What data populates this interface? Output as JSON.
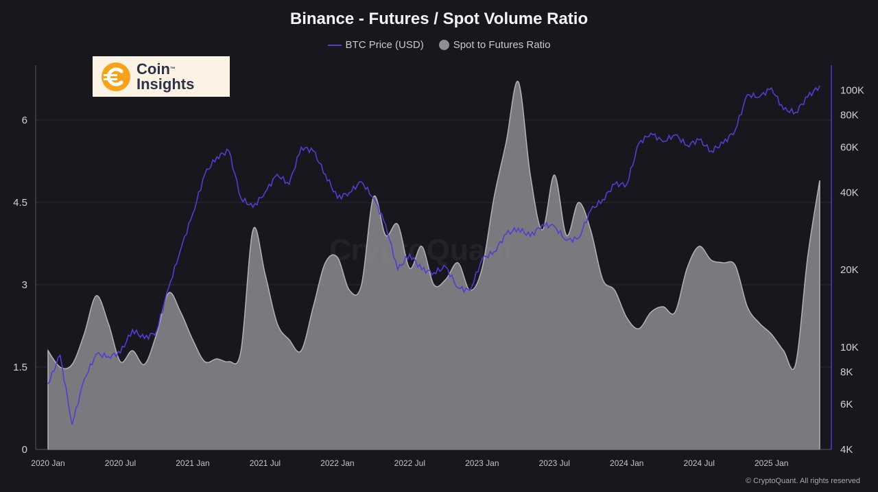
{
  "chart_data": {
    "type": "area",
    "title": "Binance - Futures / Spot Volume Ratio",
    "legend": [
      {
        "label": "BTC Price (USD)",
        "color": "#4f3fd1",
        "style": "line"
      },
      {
        "label": "Spot to Futures Ratio",
        "color": "#8f8f94",
        "style": "dot"
      }
    ],
    "legend_position": "top-center",
    "x_labels": [
      "2020 Jan",
      "2020 Jul",
      "2021 Jan",
      "2021 Jul",
      "2022 Jan",
      "2022 Jul",
      "2023 Jan",
      "2023 Jul",
      "2024 Jan",
      "2024 Jul",
      "2025 Jan"
    ],
    "y_left_ticks": [
      "0",
      "1.5",
      "3",
      "4.5",
      "6"
    ],
    "y_left_range": [
      0,
      7
    ],
    "y_right_ticks": [
      "4K",
      "6K",
      "8K",
      "10K",
      "20K",
      "40K",
      "60K",
      "80K",
      "100K"
    ],
    "y_right_scale": "log",
    "y_right_range": [
      4000,
      125000
    ],
    "grid": true,
    "series": [
      {
        "name": "Spot to Futures Ratio",
        "axis": "left",
        "style": "area",
        "color": "#8f8f94",
        "x": [
          "2020-01",
          "2020-02",
          "2020-03",
          "2020-04",
          "2020-05",
          "2020-06",
          "2020-07",
          "2020-08",
          "2020-09",
          "2020-10",
          "2020-11",
          "2020-12",
          "2021-01",
          "2021-02",
          "2021-03",
          "2021-04",
          "2021-05",
          "2021-06",
          "2021-07",
          "2021-08",
          "2021-09",
          "2021-10",
          "2021-11",
          "2021-12",
          "2022-01",
          "2022-02",
          "2022-03",
          "2022-04",
          "2022-05",
          "2022-06",
          "2022-07",
          "2022-08",
          "2022-09",
          "2022-10",
          "2022-11",
          "2022-12",
          "2023-01",
          "2023-02",
          "2023-03",
          "2023-04",
          "2023-05",
          "2023-06",
          "2023-07",
          "2023-08",
          "2023-09",
          "2023-10",
          "2023-11",
          "2023-12",
          "2024-01",
          "2024-02",
          "2024-03",
          "2024-04",
          "2024-05",
          "2024-06",
          "2024-07",
          "2024-08",
          "2024-09",
          "2024-10",
          "2024-11",
          "2024-12",
          "2025-01",
          "2025-02",
          "2025-03",
          "2025-04",
          "2025-05"
        ],
        "values": [
          1.8,
          1.5,
          1.55,
          2.1,
          2.8,
          2.3,
          1.6,
          1.8,
          1.55,
          2.1,
          2.85,
          2.5,
          2.0,
          1.6,
          1.65,
          1.6,
          1.8,
          4.0,
          3.2,
          2.3,
          2.0,
          1.8,
          2.6,
          3.4,
          3.5,
          2.9,
          3.0,
          4.6,
          3.9,
          4.1,
          3.3,
          3.7,
          3.0,
          3.1,
          3.4,
          2.9,
          3.3,
          4.6,
          5.6,
          6.7,
          5.0,
          4.0,
          5.0,
          3.9,
          4.5,
          4.0,
          3.1,
          2.9,
          2.4,
          2.2,
          2.5,
          2.6,
          2.5,
          3.3,
          3.7,
          3.45,
          3.4,
          3.35,
          2.6,
          2.3,
          2.1,
          1.8,
          1.55,
          3.5,
          4.9
        ]
      },
      {
        "name": "BTC Price (USD)",
        "axis": "right",
        "style": "line",
        "color": "#4f3fd1",
        "x": [
          "2020-01",
          "2020-02",
          "2020-03",
          "2020-04",
          "2020-05",
          "2020-06",
          "2020-07",
          "2020-08",
          "2020-09",
          "2020-10",
          "2020-11",
          "2020-12",
          "2021-01",
          "2021-02",
          "2021-03",
          "2021-04",
          "2021-05",
          "2021-06",
          "2021-07",
          "2021-08",
          "2021-09",
          "2021-10",
          "2021-11",
          "2021-12",
          "2022-01",
          "2022-02",
          "2022-03",
          "2022-04",
          "2022-05",
          "2022-06",
          "2022-07",
          "2022-08",
          "2022-09",
          "2022-10",
          "2022-11",
          "2022-12",
          "2023-01",
          "2023-02",
          "2023-03",
          "2023-04",
          "2023-05",
          "2023-06",
          "2023-07",
          "2023-08",
          "2023-09",
          "2023-10",
          "2023-11",
          "2023-12",
          "2024-01",
          "2024-02",
          "2024-03",
          "2024-04",
          "2024-05",
          "2024-06",
          "2024-07",
          "2024-08",
          "2024-09",
          "2024-10",
          "2024-11",
          "2024-12",
          "2025-01",
          "2025-02",
          "2025-03",
          "2025-04",
          "2025-05"
        ],
        "values": [
          7200,
          9300,
          5000,
          7500,
          9400,
          9200,
          9500,
          11700,
          10800,
          11500,
          17000,
          24000,
          33000,
          47000,
          55000,
          58000,
          38000,
          35000,
          40000,
          47000,
          43000,
          60000,
          58000,
          47000,
          38000,
          40000,
          44000,
          38000,
          30000,
          20000,
          23000,
          20000,
          19500,
          20500,
          17000,
          16600,
          22000,
          23500,
          27500,
          29000,
          27000,
          30000,
          29500,
          26000,
          26500,
          34000,
          37500,
          43000,
          43000,
          62000,
          68000,
          63000,
          67000,
          61000,
          64000,
          58000,
          62000,
          70000,
          96000,
          94000,
          102000,
          84000,
          82000,
          94000,
          104000
        ]
      }
    ]
  },
  "logo": {
    "line1": "Coin",
    "line2": "Insights",
    "tm": "™"
  },
  "watermark": "CryptoQuant",
  "footer": "© CryptoQuant. All rights reserved"
}
